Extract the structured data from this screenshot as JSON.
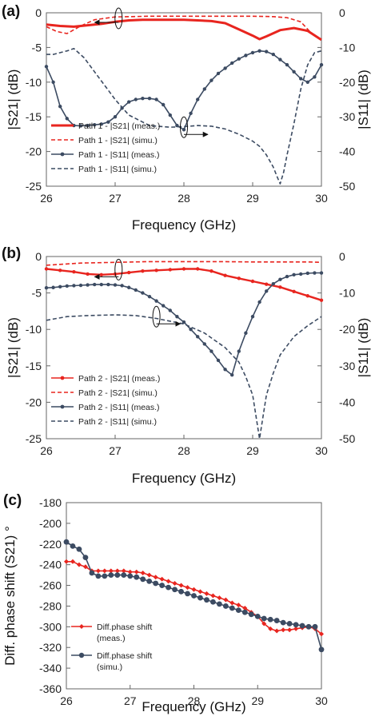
{
  "chart_data": [
    {
      "panel": "(a)",
      "type": "line",
      "title": "",
      "xlabel": "Frequency (GHz)",
      "ylabel_left": "|S21| (dB)",
      "ylabel_right": "|S11| (dB)",
      "xlim": [
        26,
        30
      ],
      "ylim_left": [
        -25,
        0
      ],
      "ylim_right": [
        -50,
        0
      ],
      "xticks": [
        "26",
        "27",
        "28",
        "29",
        "30"
      ],
      "yticks_left": [
        "-25",
        "-20",
        "-15",
        "-10",
        "-5",
        "0"
      ],
      "yticks_right": [
        "-50",
        "-40",
        "-30",
        "-20",
        "-10",
        "0"
      ],
      "grid": false,
      "legend": "bottom-left",
      "series": [
        {
          "name": "Path 1 - |S21| (meas.)",
          "axis": "left",
          "color": "#e8251f",
          "style": "solid-thick",
          "x": [
            26.0,
            26.2,
            26.4,
            26.6,
            26.8,
            27.0,
            27.2,
            27.4,
            27.6,
            27.8,
            28.0,
            28.2,
            28.4,
            28.6,
            28.8,
            29.0,
            29.1,
            29.2,
            29.4,
            29.6,
            29.8,
            30.0
          ],
          "y": [
            -1.7,
            -1.9,
            -2.0,
            -1.8,
            -1.6,
            -1.3,
            -1.1,
            -1.0,
            -1.0,
            -1.0,
            -1.0,
            -1.1,
            -1.2,
            -1.5,
            -2.4,
            -3.3,
            -3.8,
            -3.4,
            -2.5,
            -2.2,
            -2.6,
            -3.9
          ]
        },
        {
          "name": "Path 1 - |S21| (simu.)",
          "axis": "left",
          "color": "#e8251f",
          "style": "dashed",
          "x": [
            26.0,
            26.15,
            26.3,
            26.5,
            26.7,
            27.0,
            27.5,
            28.0,
            28.5,
            29.0,
            29.3,
            29.5,
            29.7,
            29.85,
            30.0
          ],
          "y": [
            -2.0,
            -2.7,
            -3.0,
            -1.9,
            -1.0,
            -0.6,
            -0.5,
            -0.5,
            -0.5,
            -0.5,
            -0.55,
            -0.7,
            -1.3,
            -2.9,
            -3.9
          ]
        },
        {
          "name": "Path 1 - |S11| (meas.)",
          "axis": "right",
          "color": "#3c4b62",
          "style": "solid-markers",
          "x": [
            26.0,
            26.1,
            26.2,
            26.3,
            26.4,
            26.5,
            26.6,
            26.7,
            26.8,
            26.9,
            27.0,
            27.1,
            27.2,
            27.3,
            27.4,
            27.5,
            27.6,
            27.7,
            27.8,
            27.9,
            28.0,
            28.1,
            28.2,
            28.3,
            28.4,
            28.5,
            28.6,
            28.7,
            28.8,
            28.9,
            29.0,
            29.1,
            29.2,
            29.3,
            29.4,
            29.5,
            29.6,
            29.7,
            29.8,
            29.9,
            30.0
          ],
          "y": [
            -15.5,
            -20.0,
            -27.0,
            -30.5,
            -32.5,
            -32.6,
            -32.5,
            -32.3,
            -32.1,
            -31.5,
            -30.0,
            -27.5,
            -25.7,
            -25.0,
            -24.7,
            -24.7,
            -25.0,
            -26.5,
            -29.5,
            -32.5,
            -33.7,
            -29.0,
            -25.0,
            -22.0,
            -19.5,
            -17.5,
            -16.0,
            -14.5,
            -13.3,
            -12.3,
            -11.5,
            -11.0,
            -11.2,
            -12.0,
            -13.5,
            -15.0,
            -17.0,
            -19.0,
            -20.0,
            -18.5,
            -15.0
          ]
        },
        {
          "name": "Path 1 - |S11| (simu.)",
          "axis": "right",
          "color": "#3c4b62",
          "style": "dashed",
          "x": [
            26.0,
            26.1,
            26.2,
            26.3,
            26.4,
            26.55,
            26.7,
            26.85,
            27.0,
            27.2,
            27.5,
            27.8,
            28.0,
            28.2,
            28.4,
            28.6,
            28.8,
            29.0,
            29.1,
            29.2,
            29.3,
            29.35,
            29.4,
            29.45,
            29.5,
            29.6,
            29.7,
            29.8,
            29.9,
            30.0
          ],
          "y": [
            -12.0,
            -12.0,
            -11.5,
            -11.0,
            -10.3,
            -13.0,
            -17.0,
            -21.0,
            -25.0,
            -29.5,
            -32.5,
            -33.0,
            -32.8,
            -32.5,
            -32.7,
            -33.5,
            -35.0,
            -37.0,
            -38.5,
            -41.0,
            -44.5,
            -47.0,
            -49.3,
            -46.0,
            -41.0,
            -32.0,
            -22.0,
            -15.0,
            -11.5,
            -11.0
          ]
        }
      ],
      "annotations": [
        {
          "type": "ellipse-arrow",
          "axis": "left",
          "at": [
            27.05,
            -0.8
          ],
          "direction": "left"
        },
        {
          "type": "ellipse-arrow",
          "axis": "right",
          "at": [
            28.0,
            -33.0
          ],
          "direction": "right"
        }
      ]
    },
    {
      "panel": "(b)",
      "type": "line",
      "title": "",
      "xlabel": "Frequency (GHz)",
      "ylabel_left": "|S21| (dB)",
      "ylabel_right": "|S11| (dB)",
      "xlim": [
        26,
        30
      ],
      "ylim_left": [
        -25,
        0
      ],
      "ylim_right": [
        -50,
        0
      ],
      "xticks": [
        "26",
        "27",
        "28",
        "29",
        "30"
      ],
      "yticks_left": [
        "-25",
        "-20",
        "-15",
        "-10",
        "-5",
        "0"
      ],
      "yticks_right": [
        "-50",
        "-40",
        "-30",
        "-20",
        "-10",
        "0"
      ],
      "grid": false,
      "legend": "bottom-left",
      "series": [
        {
          "name": "Path 2 - |S21| (meas.)",
          "axis": "left",
          "color": "#e8251f",
          "style": "solid-markers",
          "x": [
            26.0,
            26.2,
            26.4,
            26.6,
            26.8,
            27.0,
            27.2,
            27.4,
            27.6,
            27.8,
            28.0,
            28.2,
            28.4,
            28.6,
            28.8,
            29.0,
            29.2,
            29.4,
            29.6,
            29.8,
            30.0
          ],
          "y": [
            -1.7,
            -1.9,
            -2.1,
            -2.4,
            -2.5,
            -2.4,
            -2.2,
            -2.0,
            -1.9,
            -1.8,
            -1.7,
            -1.7,
            -2.0,
            -2.6,
            -3.0,
            -3.4,
            -3.8,
            -4.2,
            -4.8,
            -5.4,
            -6.0
          ]
        },
        {
          "name": "Path 2 - |S21| (simu.)",
          "axis": "left",
          "color": "#e8251f",
          "style": "dashed",
          "x": [
            26.0,
            26.5,
            27.0,
            27.5,
            28.0,
            28.5,
            29.0,
            29.5,
            29.8,
            30.0
          ],
          "y": [
            -1.2,
            -0.9,
            -0.8,
            -0.7,
            -0.7,
            -0.7,
            -0.75,
            -0.75,
            -0.75,
            -0.8
          ]
        },
        {
          "name": "Path 2 - |S11| (meas.)",
          "axis": "right",
          "color": "#3c4b62",
          "style": "solid-markers",
          "x": [
            26.0,
            26.1,
            26.2,
            26.3,
            26.4,
            26.5,
            26.6,
            26.7,
            26.8,
            26.9,
            27.0,
            27.1,
            27.2,
            27.3,
            27.4,
            27.5,
            27.6,
            27.7,
            27.8,
            27.9,
            28.0,
            28.1,
            28.2,
            28.3,
            28.4,
            28.5,
            28.6,
            28.7,
            28.8,
            28.9,
            29.0,
            29.1,
            29.2,
            29.3,
            29.4,
            29.5,
            29.6,
            29.7,
            29.8,
            29.9,
            30.0
          ],
          "y": [
            -8.6,
            -8.5,
            -8.3,
            -8.1,
            -8.0,
            -7.9,
            -7.8,
            -7.7,
            -7.7,
            -7.7,
            -7.8,
            -8.0,
            -8.5,
            -9.2,
            -10.0,
            -11.0,
            -12.2,
            -13.5,
            -14.8,
            -16.5,
            -18.0,
            -20.0,
            -22.0,
            -24.0,
            -26.0,
            -28.5,
            -31.0,
            -32.5,
            -26.0,
            -21.0,
            -16.5,
            -12.5,
            -9.5,
            -7.5,
            -6.3,
            -5.5,
            -5.0,
            -4.8,
            -4.6,
            -4.5,
            -4.5
          ]
        },
        {
          "name": "Path 2 - |S11| (simu.)",
          "axis": "right",
          "color": "#3c4b62",
          "style": "dashed",
          "x": [
            26.0,
            26.3,
            26.6,
            27.0,
            27.3,
            27.6,
            28.0,
            28.3,
            28.6,
            28.8,
            28.9,
            29.0,
            29.05,
            29.1,
            29.15,
            29.2,
            29.3,
            29.4,
            29.6,
            29.8,
            30.0
          ],
          "y": [
            -17.5,
            -16.5,
            -16.2,
            -16.0,
            -16.2,
            -17.0,
            -18.5,
            -21.0,
            -25.0,
            -29.0,
            -33.0,
            -38.0,
            -44.0,
            -50.0,
            -44.0,
            -38.0,
            -32.0,
            -27.0,
            -22.0,
            -19.0,
            -16.5
          ]
        }
      ],
      "annotations": [
        {
          "type": "ellipse-arrow",
          "axis": "left",
          "at": [
            27.05,
            -1.8
          ],
          "direction": "left"
        },
        {
          "type": "ellipse-arrow",
          "axis": "right",
          "at": [
            27.6,
            -16.5
          ],
          "direction": "right"
        }
      ]
    },
    {
      "panel": "(c)",
      "type": "line",
      "title": "",
      "xlabel": "Frequency (GHz)",
      "ylabel_left": "Diff. phase shift (S21) °",
      "xlim": [
        26,
        30
      ],
      "ylim_left": [
        -360,
        -180
      ],
      "xticks": [
        "26",
        "27",
        "28",
        "29",
        "30"
      ],
      "yticks_left": [
        "-360",
        "-340",
        "-320",
        "-300",
        "-280",
        "-260",
        "-240",
        "-220",
        "-200",
        "-180"
      ],
      "grid": false,
      "legend": "bottom-left",
      "series": [
        {
          "name": "Diff.phase shift (meas.)",
          "legend_lines": [
            "Diff.phase shift",
            "(meas.)"
          ],
          "axis": "left",
          "color": "#e8251f",
          "style": "solid-diamonds",
          "x": [
            26.0,
            26.1,
            26.2,
            26.3,
            26.4,
            26.5,
            26.6,
            26.7,
            26.8,
            26.9,
            27.0,
            27.1,
            27.2,
            27.3,
            27.4,
            27.5,
            27.6,
            27.7,
            27.8,
            27.9,
            28.0,
            28.1,
            28.2,
            28.3,
            28.4,
            28.5,
            28.6,
            28.7,
            28.8,
            28.9,
            29.0,
            29.1,
            29.2,
            29.3,
            29.4,
            29.5,
            29.6,
            29.7,
            29.8,
            29.9,
            30.0
          ],
          "y": [
            -237,
            -237,
            -240,
            -242,
            -246,
            -246,
            -246,
            -246,
            -246,
            -246,
            -247,
            -247,
            -248,
            -250,
            -252,
            -254,
            -256,
            -258,
            -260,
            -262,
            -264,
            -266,
            -268,
            -270,
            -272,
            -274,
            -277,
            -279,
            -282,
            -286,
            -290,
            -297,
            -302,
            -304,
            -303,
            -303,
            -302,
            -301,
            -300,
            -302,
            -307
          ]
        },
        {
          "name": "Diff.phase shift (simu.)",
          "legend_lines": [
            "Diff.phase shift",
            "(simu.)"
          ],
          "axis": "left",
          "color": "#3c4b62",
          "style": "solid-markers",
          "x": [
            26.0,
            26.1,
            26.2,
            26.3,
            26.4,
            26.5,
            26.6,
            26.7,
            26.8,
            26.9,
            27.0,
            27.1,
            27.2,
            27.3,
            27.4,
            27.5,
            27.6,
            27.7,
            27.8,
            27.9,
            28.0,
            28.1,
            28.2,
            28.3,
            28.4,
            28.5,
            28.6,
            28.7,
            28.8,
            28.9,
            29.0,
            29.1,
            29.2,
            29.3,
            29.4,
            29.5,
            29.6,
            29.7,
            29.8,
            29.9,
            30.0
          ],
          "y": [
            -218,
            -222,
            -225,
            -233,
            -248,
            -251,
            -251,
            -250,
            -250,
            -250,
            -251,
            -252,
            -254,
            -256,
            -258,
            -260,
            -262,
            -264,
            -266,
            -268,
            -270,
            -272,
            -274,
            -276,
            -278,
            -280,
            -282,
            -284,
            -286,
            -288,
            -290,
            -292,
            -293,
            -294,
            -296,
            -297,
            -298,
            -299,
            -300,
            -300,
            -322
          ]
        }
      ]
    }
  ]
}
